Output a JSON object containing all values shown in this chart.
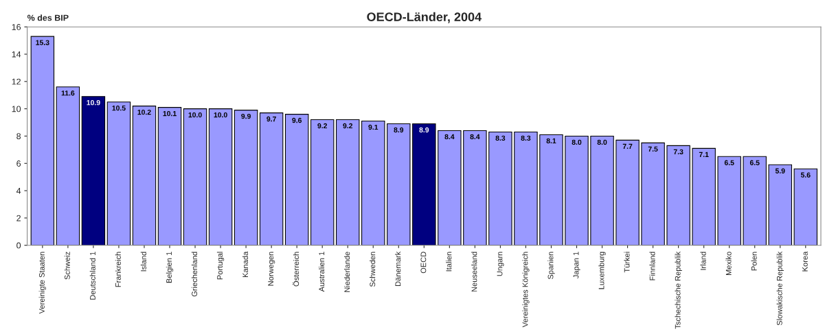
{
  "chart_data": {
    "type": "bar",
    "title": "OECD-Länder, 2004",
    "ylabel": "% des BIP",
    "categories": [
      "Vereinigte Staaten",
      "Schweiz",
      "Deutschland 1",
      "Frankreich",
      "Island",
      "Belgien 1",
      "Griechenland",
      "Portugal",
      "Kanada",
      "Norwegen",
      "Österreich",
      "Australien 1",
      "Niederlande",
      "Schweden",
      "Dänemark",
      "OECD",
      "Italien",
      "Neuseeland",
      "Ungarn",
      "Vereinigtes Königreich",
      "Spanien",
      "Japan 1",
      "Luxemburg",
      "Türkei",
      "Finnland",
      "Tschechische Republik",
      "Irland",
      "Mexiko",
      "Polen",
      "Slowakische Republik",
      "Korea"
    ],
    "values": [
      15.3,
      11.6,
      10.9,
      10.5,
      10.2,
      10.1,
      10.0,
      10.0,
      9.9,
      9.7,
      9.6,
      9.2,
      9.2,
      9.1,
      8.9,
      8.9,
      8.4,
      8.4,
      8.3,
      8.3,
      8.1,
      8.0,
      8.0,
      7.7,
      7.5,
      7.3,
      7.1,
      6.5,
      6.5,
      5.9,
      5.6
    ],
    "value_labels": [
      "15.3",
      "11.6",
      "10.9",
      "10.5",
      "10.2",
      "10.1",
      "10.0",
      "10.0",
      "9.9",
      "9.7",
      "9.6",
      "9.2",
      "9.2",
      "9.1",
      "8.9",
      "8.9",
      "8.4",
      "8.4",
      "8.3",
      "8.3",
      "8.1",
      "8.0",
      "8.0",
      "7.7",
      "7.5",
      "7.3",
      "7.1",
      "6.5",
      "6.5",
      "5.9",
      "5.6"
    ],
    "colors": [
      "#9999ff",
      "#9999ff",
      "#000080",
      "#9999ff",
      "#9999ff",
      "#9999ff",
      "#9999ff",
      "#9999ff",
      "#9999ff",
      "#9999ff",
      "#9999ff",
      "#9999ff",
      "#9999ff",
      "#9999ff",
      "#9999ff",
      "#000080",
      "#9999ff",
      "#9999ff",
      "#9999ff",
      "#9999ff",
      "#9999ff",
      "#9999ff",
      "#9999ff",
      "#9999ff",
      "#9999ff",
      "#9999ff",
      "#9999ff",
      "#9999ff",
      "#9999ff",
      "#9999ff",
      "#9999ff"
    ],
    "ylim": [
      0,
      16
    ],
    "yticks": [
      0,
      2,
      4,
      6,
      8,
      10,
      12,
      14,
      16
    ],
    "grid": false
  }
}
